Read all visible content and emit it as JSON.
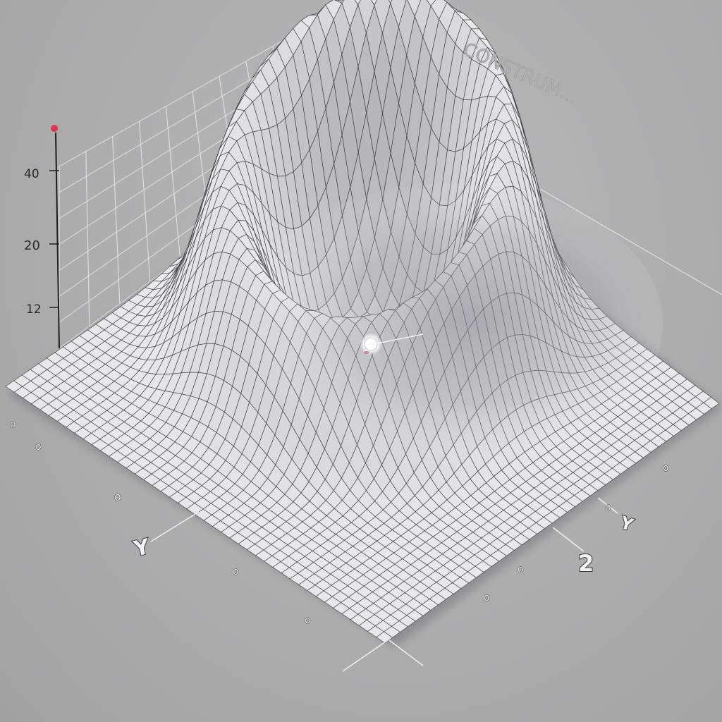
{
  "watermark": "CONSTRUM...",
  "z_axis_labels": [
    "40",
    "20",
    "12"
  ],
  "axis_letters": {
    "left": "Y",
    "right_a": "Y",
    "right_b": "2"
  },
  "tick_marks_left": [
    "o",
    "o",
    "o",
    "o",
    "o"
  ],
  "tick_marks_right": [
    "o",
    "o",
    "o",
    "o"
  ],
  "colors": {
    "background": "#aaaaab",
    "surface": "#e8e8ea",
    "grid_line": "#303034",
    "wall_grid": "#e6e6e8",
    "axis_marker": "#e0364b",
    "marker_dot": "#ffffff"
  }
}
